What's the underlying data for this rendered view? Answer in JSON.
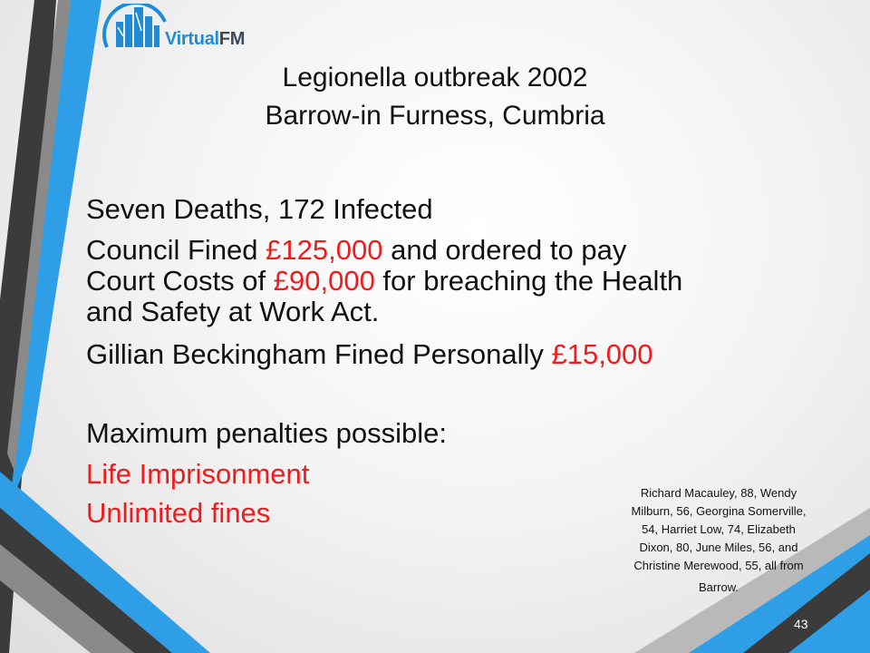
{
  "logo": {
    "text_part1": "Virtual",
    "text_part2": "FM"
  },
  "title": {
    "line1": "Legionella outbreak 2002",
    "line2": "Barrow-in Furness, Cumbria"
  },
  "body": {
    "line1": "Seven Deaths, 172 Infected",
    "line2_a": "Council Fined ",
    "line2_b": "£125,000",
    "line2_c": " and ordered to pay",
    "line3_a": "Court Costs of ",
    "line3_b": "£90,000",
    "line3_c": " for breaching the Health",
    "line4": "and Safety at Work Act.",
    "line5_a": "Gillian Beckingham Fined Personally ",
    "line5_b": "£15,000",
    "line6": "Maximum penalties possible:",
    "line7": "Life Imprisonment",
    "line8": "Unlimited fines"
  },
  "note": {
    "line1": "Richard Macauley, 88, Wendy",
    "line2": "Milburn, 56, Georgina Somerville,",
    "line3": "54, Harriet Low, 74, Elizabeth",
    "line4": "Dixon, 80, June Miles, 56, and",
    "line5": "Christine Merewood, 55, all from",
    "line6": "Barrow."
  },
  "slide_number": "43",
  "colors": {
    "accent_blue": "#1f8bd6",
    "dark_gray": "#3b3b3b",
    "red": "#ee1c1c"
  }
}
